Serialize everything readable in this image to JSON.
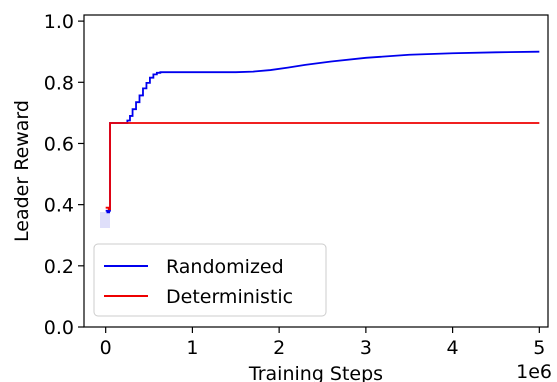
{
  "chart_data": {
    "type": "line",
    "title": "",
    "xlabel": "Training Steps",
    "ylabel": "Leader Reward",
    "x_offset_label": "1e6",
    "xlim": [
      -0.25,
      5.1
    ],
    "ylim": [
      0.0,
      1.02
    ],
    "x_ticks": [
      0,
      1,
      2,
      3,
      4,
      5
    ],
    "x_tick_labels": [
      "0",
      "1",
      "2",
      "3",
      "4",
      "5"
    ],
    "y_ticks": [
      0.0,
      0.2,
      0.4,
      0.6,
      0.8,
      1.0
    ],
    "y_tick_labels": [
      "0.0",
      "0.2",
      "0.4",
      "0.6",
      "0.8",
      "1.0"
    ],
    "grid": false,
    "legend_position": "lower-left",
    "series": [
      {
        "name": "Randomized",
        "color": "#0000ee",
        "x": [
          0.0,
          0.02,
          0.02,
          0.04,
          0.04,
          0.05,
          0.05,
          0.25,
          0.25,
          0.28,
          0.28,
          0.31,
          0.31,
          0.35,
          0.35,
          0.39,
          0.39,
          0.43,
          0.43,
          0.47,
          0.47,
          0.51,
          0.51,
          0.55,
          0.55,
          0.59,
          0.59,
          0.63,
          0.63,
          1.0,
          1.5,
          1.7,
          1.9,
          2.1,
          2.3,
          2.6,
          3.0,
          3.5,
          4.0,
          4.5,
          5.0
        ],
        "y": [
          0.38,
          0.38,
          0.375,
          0.375,
          0.38,
          0.38,
          0.667,
          0.667,
          0.675,
          0.675,
          0.69,
          0.69,
          0.712,
          0.712,
          0.735,
          0.735,
          0.757,
          0.757,
          0.78,
          0.78,
          0.798,
          0.798,
          0.815,
          0.815,
          0.826,
          0.826,
          0.831,
          0.831,
          0.833,
          0.833,
          0.833,
          0.835,
          0.84,
          0.848,
          0.857,
          0.868,
          0.88,
          0.89,
          0.895,
          0.898,
          0.9
        ]
      },
      {
        "name": "Deterministic",
        "color": "#ee0000",
        "x": [
          0.0,
          0.035,
          0.035,
          0.05,
          0.05,
          1.0,
          2.0,
          3.0,
          4.0,
          5.0
        ],
        "y": [
          0.39,
          0.39,
          0.385,
          0.385,
          0.667,
          0.667,
          0.667,
          0.667,
          0.667,
          0.667
        ]
      }
    ]
  }
}
